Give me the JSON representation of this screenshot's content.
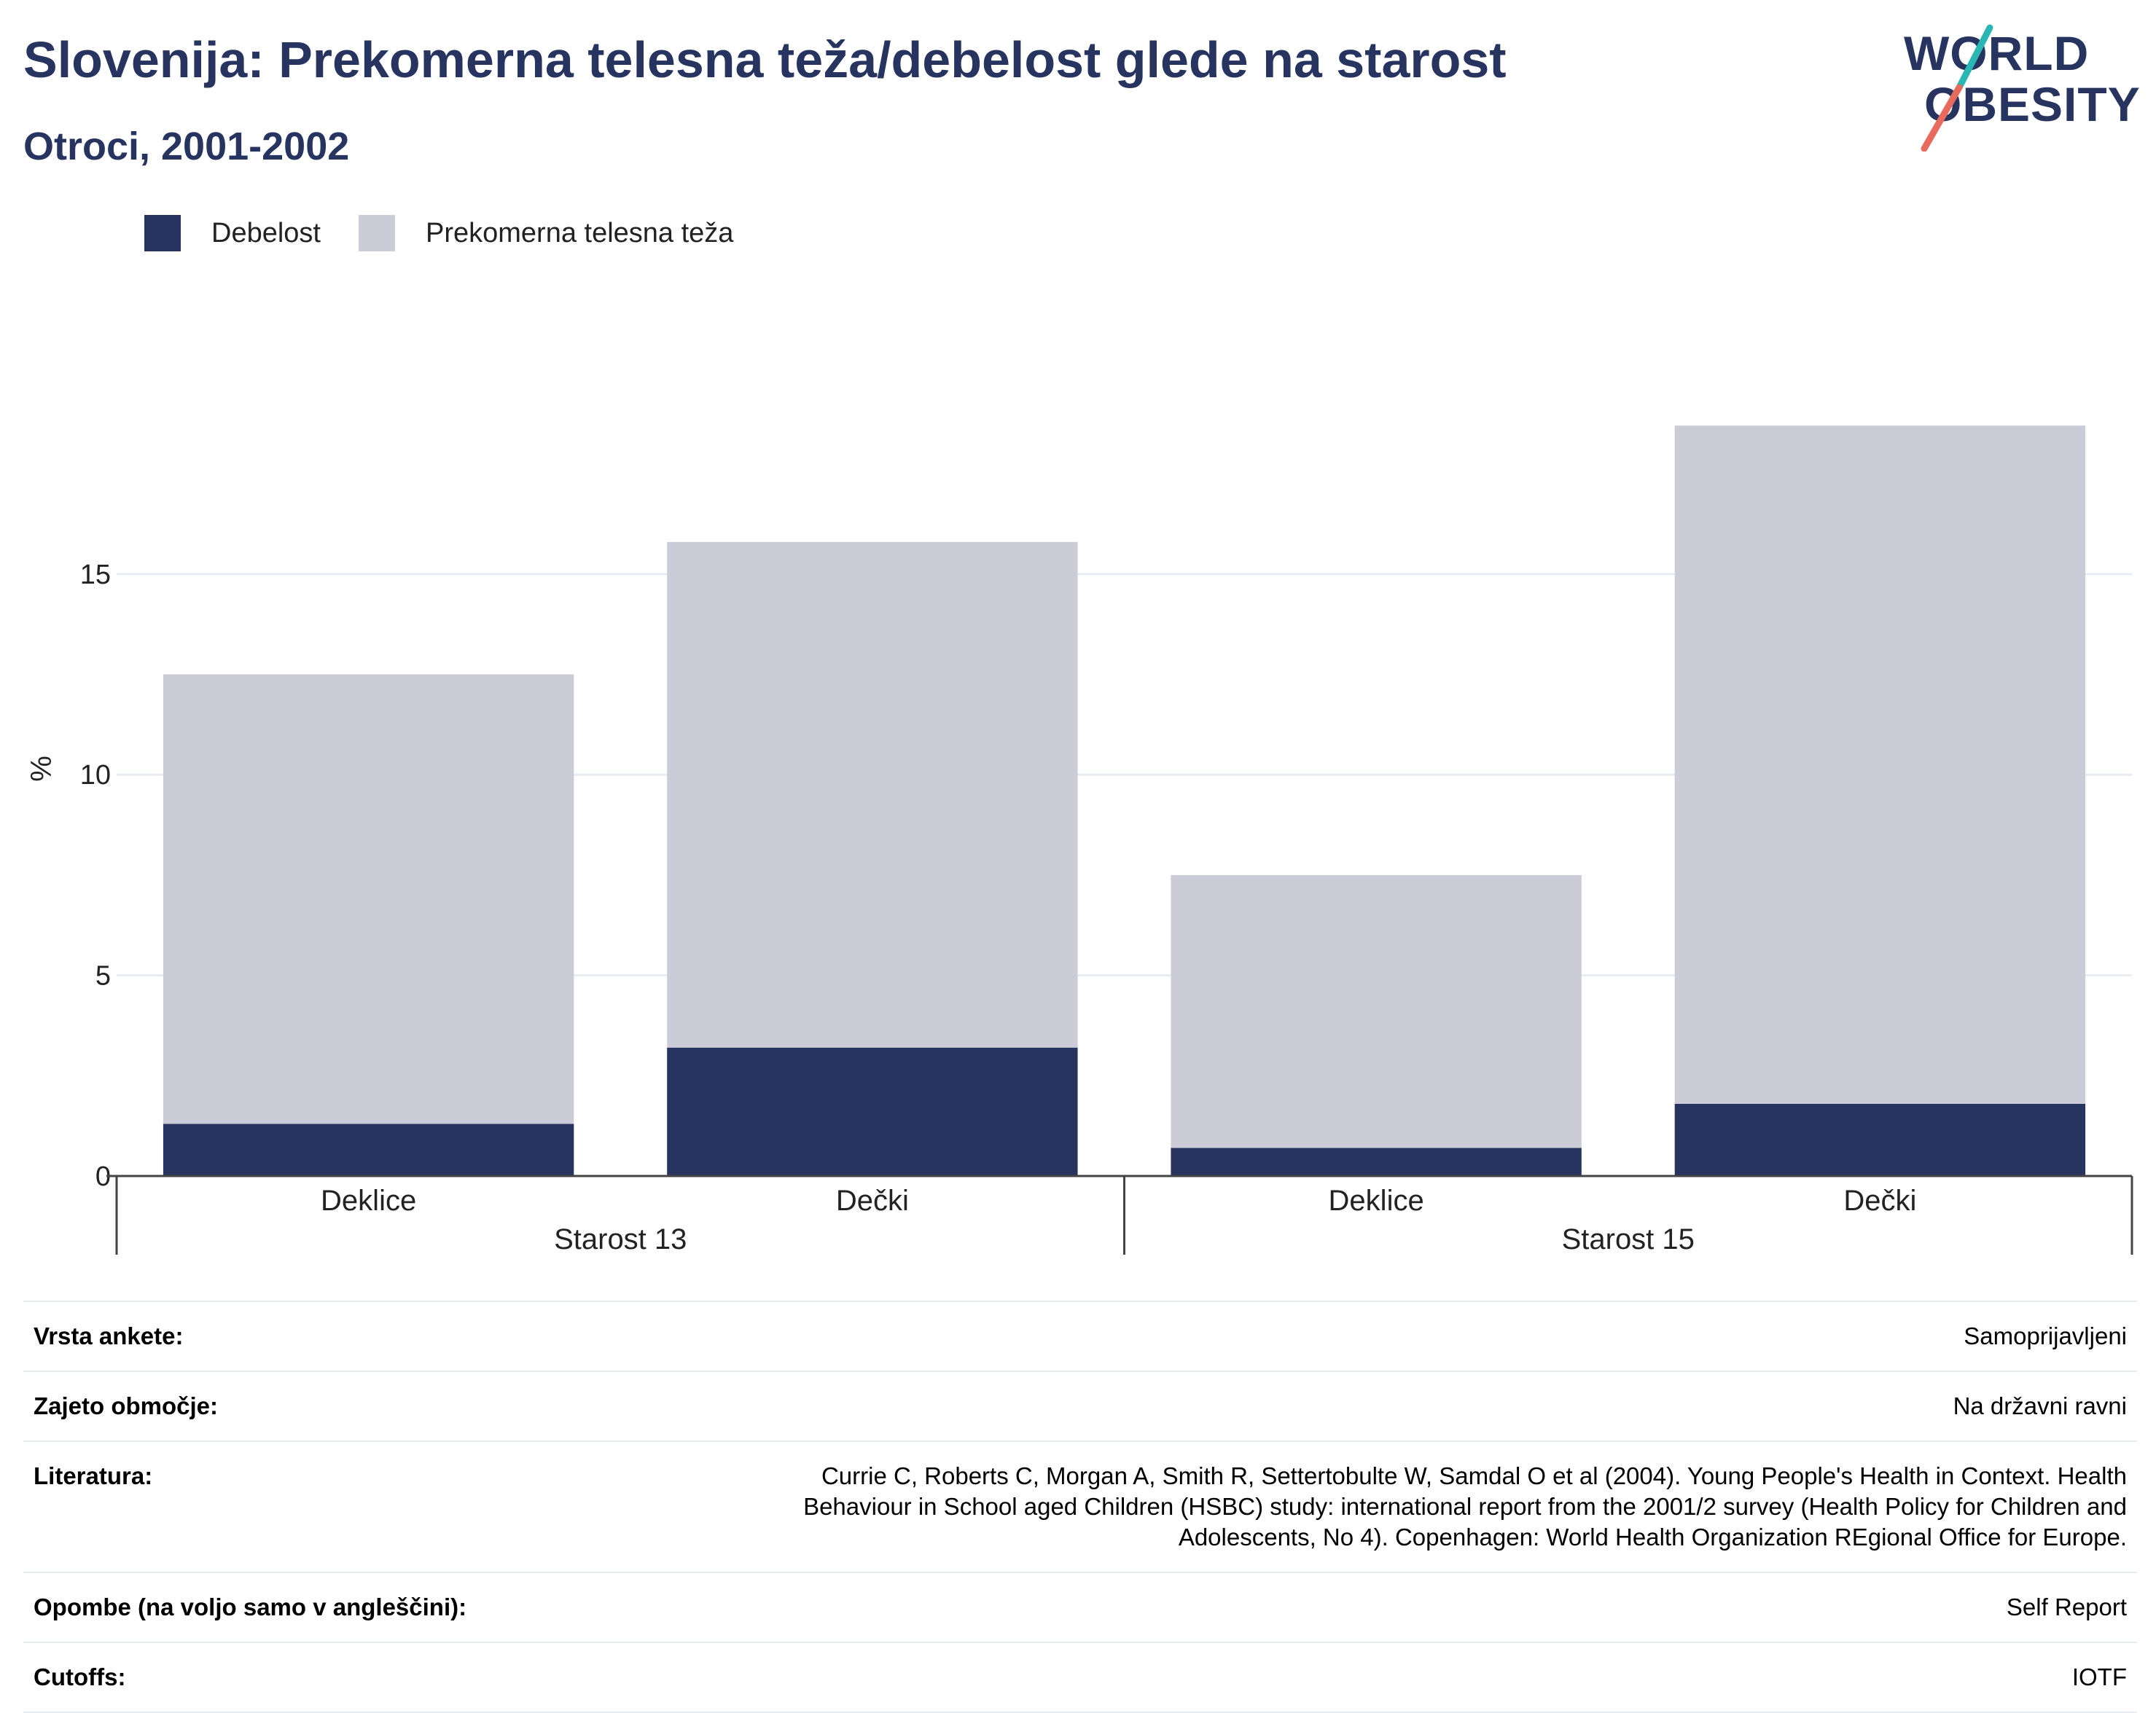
{
  "header": {
    "title": "Slovenija: Prekomerna telesna teža/debelost glede na starost",
    "subtitle": "Otroci, 2001-2002"
  },
  "logo": {
    "line1": "WORLD",
    "line2": "OBESITY"
  },
  "legend": [
    {
      "label": "Debelost",
      "color": "#283460"
    },
    {
      "label": "Prekomerna telesna teža",
      "color": "#cbccd8"
    }
  ],
  "chart_data": {
    "type": "bar",
    "stacked": true,
    "ylabel": "%",
    "ylim": [
      0,
      19.5
    ],
    "yticks": [
      0,
      5,
      10,
      15
    ],
    "grid": true,
    "legend_position": "top-left",
    "categories": [
      "Deklice",
      "Dečki",
      "Deklice",
      "Dečki"
    ],
    "groups": [
      {
        "label": "Starost 13",
        "categories": [
          0,
          1
        ]
      },
      {
        "label": "Starost 15",
        "categories": [
          2,
          3
        ]
      }
    ],
    "series": [
      {
        "name": "Debelost",
        "color": "#283460",
        "values": [
          1.3,
          3.2,
          0.7,
          1.8
        ]
      },
      {
        "name": "Prekomerna telesna teža",
        "color": "#cbccd8",
        "values": [
          11.2,
          12.6,
          6.8,
          16.9
        ]
      }
    ]
  },
  "info": [
    {
      "label": "Vrsta ankete:",
      "value": "Samoprijavljeni"
    },
    {
      "label": "Zajeto območje:",
      "value": "Na državni ravni"
    },
    {
      "label": "Literatura:",
      "value": "Currie C, Roberts C, Morgan A, Smith R, Settertobulte W, Samdal O et al (2004). Young People's Health in Context. Health Behaviour in School aged Children (HSBC) study: international report from the 2001/2 survey (Health Policy for Children and Adolescents, No 4). Copenhagen: World Health Organization REgional Office for Europe."
    },
    {
      "label": "Opombe (na voljo samo v angleščini):",
      "value": "Self Report"
    },
    {
      "label": "Cutoffs:",
      "value": "IOTF"
    }
  ]
}
